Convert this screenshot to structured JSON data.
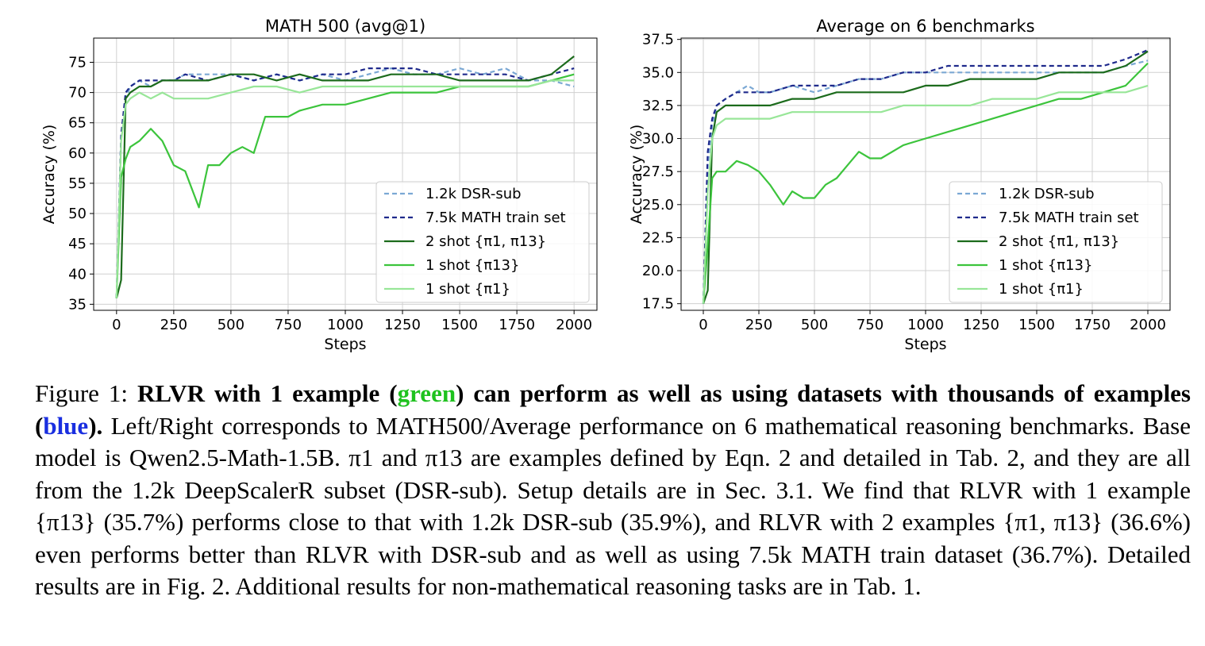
{
  "chart_data": [
    {
      "type": "line",
      "title": "MATH 500 (avg@1)",
      "xlabel": "Steps",
      "ylabel": "Accuracy (%)",
      "xlim": [
        -100,
        2100
      ],
      "ylim": [
        34,
        79
      ],
      "xticks": [
        0,
        250,
        500,
        750,
        1000,
        1250,
        1500,
        1750,
        2000
      ],
      "yticks": [
        35,
        40,
        45,
        50,
        55,
        60,
        65,
        70,
        75
      ],
      "grid": true,
      "legend_position": "lower-right",
      "series": [
        {
          "name": "1.2k DSR-sub",
          "color": "#7ba8d4",
          "dash": "6,4",
          "x": [
            0,
            20,
            40,
            60,
            100,
            150,
            200,
            250,
            300,
            400,
            500,
            600,
            700,
            800,
            900,
            1000,
            1100,
            1200,
            1300,
            1400,
            1500,
            1600,
            1700,
            1800,
            1900,
            2000
          ],
          "y": [
            36,
            63,
            69,
            71,
            72,
            71,
            72,
            72,
            73,
            73,
            73,
            72,
            73,
            72,
            73,
            72,
            73,
            74,
            73,
            73,
            74,
            73,
            74,
            72,
            72,
            71
          ]
        },
        {
          "name": "7.5k MATH train set",
          "color": "#1f2a8c",
          "dash": "6,4",
          "x": [
            0,
            20,
            40,
            60,
            100,
            150,
            200,
            250,
            300,
            400,
            500,
            600,
            700,
            800,
            900,
            1000,
            1100,
            1200,
            1300,
            1400,
            1500,
            1600,
            1700,
            1800,
            1900,
            2000
          ],
          "y": [
            36,
            63,
            70,
            71,
            72,
            72,
            72,
            72,
            73,
            72,
            73,
            72,
            73,
            72,
            73,
            73,
            74,
            74,
            74,
            73,
            73,
            73,
            73,
            72,
            73,
            74
          ]
        },
        {
          "name": "2 shot {π1, π13}",
          "color": "#1c6b1c",
          "dash": "",
          "x": [
            0,
            20,
            40,
            60,
            100,
            150,
            200,
            250,
            300,
            400,
            500,
            600,
            700,
            800,
            900,
            1000,
            1100,
            1200,
            1300,
            1400,
            1500,
            1600,
            1700,
            1800,
            1900,
            2000
          ],
          "y": [
            36,
            39,
            69,
            70,
            71,
            71,
            72,
            72,
            72,
            72,
            73,
            73,
            72,
            73,
            72,
            72,
            72,
            73,
            73,
            73,
            72,
            72,
            72,
            72,
            73,
            76
          ]
        },
        {
          "name": "1 shot {π13}",
          "color": "#3cc43c",
          "dash": "",
          "x": [
            0,
            20,
            40,
            60,
            100,
            150,
            200,
            250,
            300,
            360,
            400,
            450,
            500,
            550,
            600,
            650,
            700,
            750,
            800,
            900,
            1000,
            1100,
            1200,
            1300,
            1400,
            1500,
            1600,
            1700,
            1800,
            1900,
            2000
          ],
          "y": [
            36,
            56,
            59,
            61,
            62,
            64,
            62,
            58,
            57,
            51,
            58,
            58,
            60,
            61,
            60,
            66,
            66,
            66,
            67,
            68,
            68,
            69,
            70,
            70,
            70,
            71,
            71,
            71,
            71,
            72,
            73
          ]
        },
        {
          "name": "1 shot {π1}",
          "color": "#98e698",
          "dash": "",
          "x": [
            0,
            20,
            40,
            60,
            100,
            150,
            200,
            250,
            300,
            400,
            500,
            600,
            700,
            800,
            900,
            1000,
            1100,
            1200,
            1300,
            1400,
            1500,
            1600,
            1700,
            1800,
            1900,
            2000
          ],
          "y": [
            36,
            62,
            68,
            69,
            70,
            69,
            70,
            69,
            69,
            69,
            70,
            71,
            71,
            70,
            71,
            71,
            71,
            71,
            71,
            71,
            71,
            71,
            71,
            71,
            72,
            72
          ]
        }
      ]
    },
    {
      "type": "line",
      "title": "Average on 6 benchmarks",
      "xlabel": "Steps",
      "ylabel": "Accuracy (%)",
      "xlim": [
        -100,
        2100
      ],
      "ylim": [
        17,
        37.6
      ],
      "xticks": [
        0,
        250,
        500,
        750,
        1000,
        1250,
        1500,
        1750,
        2000
      ],
      "yticks": [
        17.5,
        20.0,
        22.5,
        25.0,
        27.5,
        30.0,
        32.5,
        35.0,
        37.5
      ],
      "grid": true,
      "legend_position": "lower-right",
      "series": [
        {
          "name": "1.2k DSR-sub",
          "color": "#7ba8d4",
          "dash": "6,4",
          "x": [
            0,
            20,
            40,
            60,
            100,
            150,
            200,
            250,
            300,
            400,
            500,
            600,
            700,
            800,
            900,
            1000,
            1100,
            1200,
            1300,
            1400,
            1500,
            1600,
            1700,
            1800,
            1900,
            2000
          ],
          "y": [
            17.5,
            28,
            31,
            32.5,
            33,
            33.5,
            34,
            33.5,
            33.5,
            34,
            33.5,
            34,
            34.5,
            34.5,
            35,
            35,
            35,
            35,
            35,
            35,
            35,
            35,
            35,
            35,
            35.5,
            35.9
          ]
        },
        {
          "name": "7.5k MATH train set",
          "color": "#1f2a8c",
          "dash": "6,4",
          "x": [
            0,
            20,
            40,
            60,
            100,
            150,
            200,
            250,
            300,
            400,
            500,
            600,
            700,
            800,
            900,
            1000,
            1100,
            1200,
            1300,
            1400,
            1500,
            1600,
            1700,
            1800,
            1900,
            2000
          ],
          "y": [
            17.5,
            29,
            31.5,
            32.5,
            33,
            33.5,
            33.5,
            33.5,
            33.5,
            34,
            34,
            34,
            34.5,
            34.5,
            35,
            35,
            35.5,
            35.5,
            35.5,
            35.5,
            35.5,
            35.5,
            35.5,
            35.5,
            36,
            36.7
          ]
        },
        {
          "name": "2 shot {π1, π13}",
          "color": "#1c6b1c",
          "dash": "",
          "x": [
            0,
            20,
            40,
            60,
            100,
            150,
            200,
            250,
            300,
            400,
            500,
            600,
            700,
            800,
            900,
            1000,
            1100,
            1200,
            1300,
            1400,
            1500,
            1600,
            1700,
            1800,
            1900,
            2000
          ],
          "y": [
            17.5,
            18.5,
            30,
            32,
            32.5,
            32.5,
            32.5,
            32.5,
            32.5,
            33,
            33,
            33.5,
            33.5,
            33.5,
            33.5,
            34,
            34,
            34.5,
            34.5,
            34.5,
            34.5,
            35,
            35,
            35,
            35.5,
            36.6
          ]
        },
        {
          "name": "1 shot {π13}",
          "color": "#3cc43c",
          "dash": "",
          "x": [
            0,
            20,
            40,
            60,
            100,
            150,
            200,
            250,
            300,
            360,
            400,
            450,
            500,
            550,
            600,
            650,
            700,
            750,
            800,
            900,
            1000,
            1100,
            1200,
            1300,
            1400,
            1500,
            1600,
            1700,
            1800,
            1900,
            2000
          ],
          "y": [
            17.5,
            22,
            27,
            27.5,
            27.5,
            28.3,
            28,
            27.5,
            26.5,
            25,
            26,
            25.5,
            25.5,
            26.5,
            27,
            28,
            29,
            28.5,
            28.5,
            29.5,
            30,
            30.5,
            31,
            31.5,
            32,
            32.5,
            33,
            33,
            33.5,
            34,
            35.7
          ]
        },
        {
          "name": "1 shot {π1}",
          "color": "#98e698",
          "dash": "",
          "x": [
            0,
            20,
            40,
            60,
            100,
            150,
            200,
            250,
            300,
            400,
            500,
            600,
            700,
            800,
            900,
            1000,
            1100,
            1200,
            1300,
            1400,
            1500,
            1600,
            1700,
            1800,
            1900,
            2000
          ],
          "y": [
            17.5,
            26,
            30,
            31,
            31.5,
            31.5,
            31.5,
            31.5,
            31.5,
            32,
            32,
            32,
            32,
            32,
            32.5,
            32.5,
            32.5,
            32.5,
            33,
            33,
            33,
            33.5,
            33.5,
            33.5,
            33.5,
            34
          ]
        }
      ]
    }
  ],
  "caption": {
    "figure_label": "Figure 1:",
    "bold_part1": "RLVR with 1 example (",
    "bold_green_word": "green",
    "bold_part2": ") can perform as well as using datasets with thousands of examples (",
    "bold_blue_word": "blue",
    "bold_part3": ").",
    "body": "Left/Right corresponds to MATH500/Average performance on 6 mathematical reasoning benchmarks. Base model is Qwen2.5-Math-1.5B. π1 and π13 are examples defined by Eqn. 2 and detailed in Tab. 2, and they are all from the 1.2k DeepScalerR subset (DSR-sub). Setup details are in Sec. 3.1. We find that RLVR with 1 example {π13} (35.7%) performs close to that with 1.2k DSR-sub (35.9%), and RLVR with 2 examples {π1, π13} (36.6%) even performs better than RLVR with DSR-sub and as well as using 7.5k MATH train dataset (36.7%). Detailed results are in Fig. 2. Additional results for non-mathematical reasoning tasks are in Tab. 1."
  }
}
